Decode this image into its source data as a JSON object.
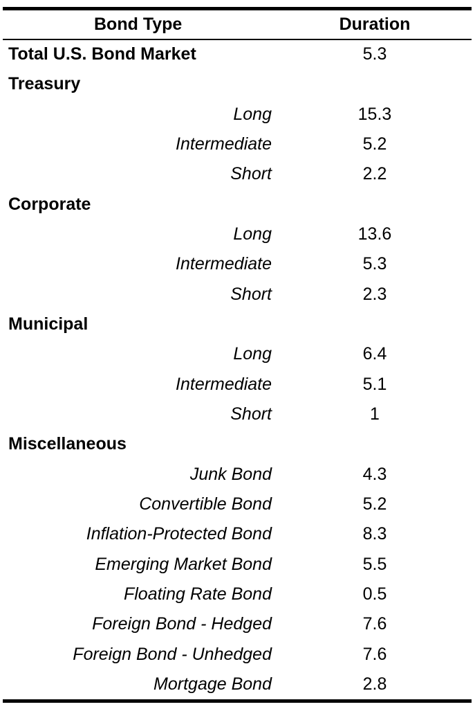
{
  "table": {
    "header": [
      "Bond Type",
      "Duration"
    ],
    "groups": [
      {
        "name": "Total U.S. Bond Market",
        "duration": 5.3,
        "items": []
      },
      {
        "name": "Treasury",
        "items": [
          {
            "label": "Long",
            "duration": 15.3
          },
          {
            "label": "Intermediate",
            "duration": 5.2
          },
          {
            "label": "Short",
            "duration": 2.2
          }
        ]
      },
      {
        "name": "Corporate",
        "items": [
          {
            "label": "Long",
            "duration": 13.6
          },
          {
            "label": "Intermediate",
            "duration": 5.3
          },
          {
            "label": "Short",
            "duration": 2.3
          }
        ]
      },
      {
        "name": "Municipal",
        "items": [
          {
            "label": "Long",
            "duration": 6.4
          },
          {
            "label": "Intermediate",
            "duration": 5.1
          },
          {
            "label": "Short",
            "duration": 1
          }
        ]
      },
      {
        "name": "Miscellaneous",
        "items": [
          {
            "label": "Junk Bond",
            "duration": 4.3
          },
          {
            "label": "Convertible Bond",
            "duration": 5.2
          },
          {
            "label": "Inflation-Protected Bond",
            "duration": 8.3
          },
          {
            "label": "Emerging Market Bond",
            "duration": 5.5
          },
          {
            "label": "Floating Rate Bond",
            "duration": 0.5
          },
          {
            "label": "Foreign Bond - Hedged",
            "duration": 7.6
          },
          {
            "label": "Foreign Bond - Unhedged",
            "duration": 7.6
          },
          {
            "label": "Mortgage Bond",
            "duration": 2.8
          }
        ]
      }
    ]
  }
}
